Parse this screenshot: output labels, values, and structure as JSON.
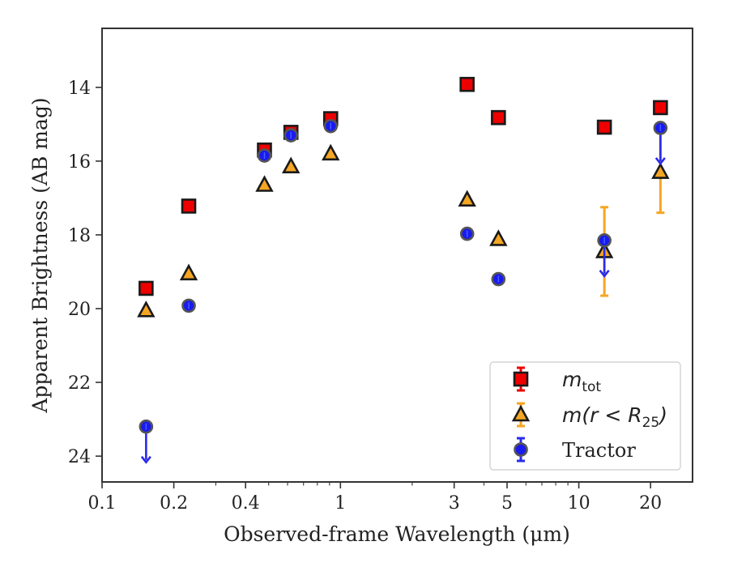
{
  "chart_data": {
    "type": "scatter",
    "xlabel": "Observed-frame Wavelength (μm)",
    "ylabel": "Apparent Brightness (AB mag)",
    "x_scale": "log",
    "xlim": [
      0.1,
      30
    ],
    "ylim": [
      24.7,
      12.4
    ],
    "y_inverted": true,
    "x_ticks": [
      {
        "value": 0.1,
        "label": "0.1"
      },
      {
        "value": 0.2,
        "label": "0.2"
      },
      {
        "value": 0.4,
        "label": "0.4"
      },
      {
        "value": 1,
        "label": "1"
      },
      {
        "value": 3,
        "label": "3"
      },
      {
        "value": 5,
        "label": "5"
      },
      {
        "value": 10,
        "label": "10"
      },
      {
        "value": 20,
        "label": "20"
      }
    ],
    "y_ticks": [
      {
        "value": 14,
        "label": "14"
      },
      {
        "value": 16,
        "label": "16"
      },
      {
        "value": 18,
        "label": "18"
      },
      {
        "value": 20,
        "label": "20"
      },
      {
        "value": 22,
        "label": "22"
      },
      {
        "value": 24,
        "label": "24"
      }
    ],
    "legend_position": "bottom-right",
    "series": [
      {
        "key": "mtot",
        "name": "m_tot",
        "legend_text": "m",
        "legend_sub": "tot",
        "marker": "square",
        "face_color": "#ee0000",
        "edge_color": "#1a1a1a",
        "error_color": "#ee0000",
        "points": [
          {
            "x": 0.153,
            "y": 19.45
          },
          {
            "x": 0.231,
            "y": 17.22
          },
          {
            "x": 0.48,
            "y": 15.7
          },
          {
            "x": 0.62,
            "y": 15.22
          },
          {
            "x": 0.91,
            "y": 14.85
          },
          {
            "x": 3.4,
            "y": 13.92
          },
          {
            "x": 4.6,
            "y": 14.82
          },
          {
            "x": 12.8,
            "y": 15.08
          },
          {
            "x": 22.0,
            "y": 14.55
          }
        ]
      },
      {
        "key": "mr25",
        "name": "m(r < R_25)",
        "legend_text": "m(r < R",
        "legend_sub": "25",
        "legend_suffix": ")",
        "marker": "triangle",
        "face_color": "#f5a623",
        "edge_color": "#1a1a1a",
        "error_color": "#f5a623",
        "points": [
          {
            "x": 0.153,
            "y": 20.05
          },
          {
            "x": 0.231,
            "y": 19.05
          },
          {
            "x": 0.48,
            "y": 16.65
          },
          {
            "x": 0.62,
            "y": 16.15
          },
          {
            "x": 0.91,
            "y": 15.8
          },
          {
            "x": 3.4,
            "y": 17.05
          },
          {
            "x": 4.6,
            "y": 18.12
          },
          {
            "x": 12.8,
            "y": 18.45,
            "err": 1.2
          },
          {
            "x": 22.0,
            "y": 16.3,
            "err": 1.1
          }
        ]
      },
      {
        "key": "tractor",
        "name": "Tractor",
        "legend_text": "Tractor",
        "marker": "circle",
        "face_color": "#1a1aee",
        "edge_color": "#555555",
        "error_color": "#2a2aee",
        "points": [
          {
            "x": 0.153,
            "y": 23.2,
            "upper_limit": true
          },
          {
            "x": 0.231,
            "y": 19.92
          },
          {
            "x": 0.48,
            "y": 15.85
          },
          {
            "x": 0.62,
            "y": 15.3
          },
          {
            "x": 0.91,
            "y": 15.05
          },
          {
            "x": 3.4,
            "y": 17.97
          },
          {
            "x": 4.6,
            "y": 19.2
          },
          {
            "x": 12.8,
            "y": 18.15,
            "upper_limit": true
          },
          {
            "x": 22.0,
            "y": 15.1,
            "upper_limit": true
          }
        ]
      }
    ]
  }
}
